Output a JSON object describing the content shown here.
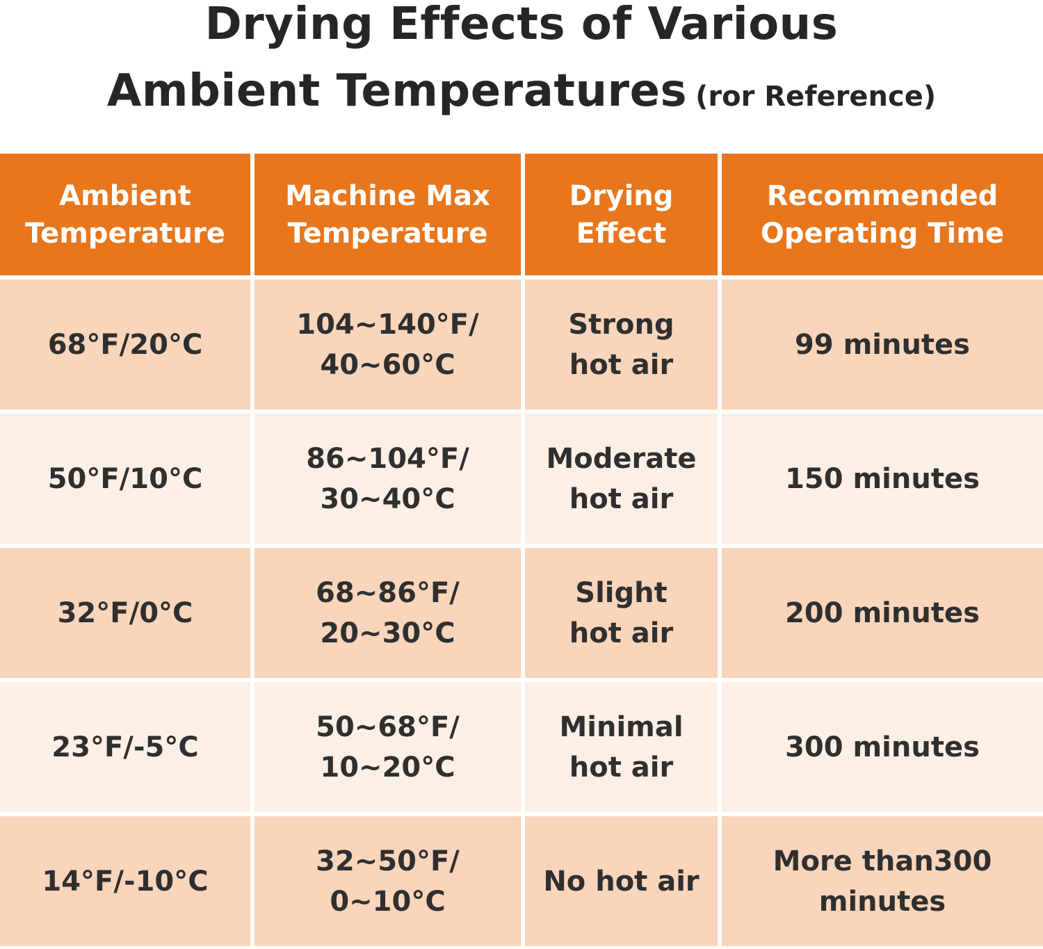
{
  "title": {
    "line1": "Drying Effects of Various",
    "line2_main": "Ambient Temperatures",
    "line2_note": "(ror Reference)"
  },
  "table": {
    "headers": [
      [
        "Ambient",
        "Temperature"
      ],
      [
        "Machine Max",
        "Temperature"
      ],
      [
        "Drying",
        "Effect"
      ],
      [
        "Recommended",
        "Operating Time"
      ]
    ],
    "rows": [
      {
        "ambient": "68°F/20°C",
        "machine_max": [
          "104~140°F/",
          "40~60°C"
        ],
        "effect": [
          "Strong",
          "hot air"
        ],
        "time": [
          "99 minutes"
        ]
      },
      {
        "ambient": "50°F/10°C",
        "machine_max": [
          "86~104°F/",
          "30~40°C"
        ],
        "effect": [
          "Moderate",
          "hot air"
        ],
        "time": [
          "150 minutes"
        ]
      },
      {
        "ambient": "32°F/0°C",
        "machine_max": [
          "68~86°F/",
          "20~30°C"
        ],
        "effect": [
          "Slight",
          "hot air"
        ],
        "time": [
          "200 minutes"
        ]
      },
      {
        "ambient": "23°F/-5°C",
        "machine_max": [
          "50~68°F/",
          "10~20°C"
        ],
        "effect": [
          "Minimal",
          "hot air"
        ],
        "time": [
          "300 minutes"
        ]
      },
      {
        "ambient": "14°F/-10°C",
        "machine_max": [
          "32~50°F/",
          "0~10°C"
        ],
        "effect": [
          "No hot air"
        ],
        "time": [
          "More than300",
          "minutes"
        ]
      }
    ]
  },
  "colors": {
    "header_bg": "#e8761c",
    "row_dark": "#f8d5bb",
    "row_light": "#fcefe6",
    "title_text": "#262626"
  }
}
